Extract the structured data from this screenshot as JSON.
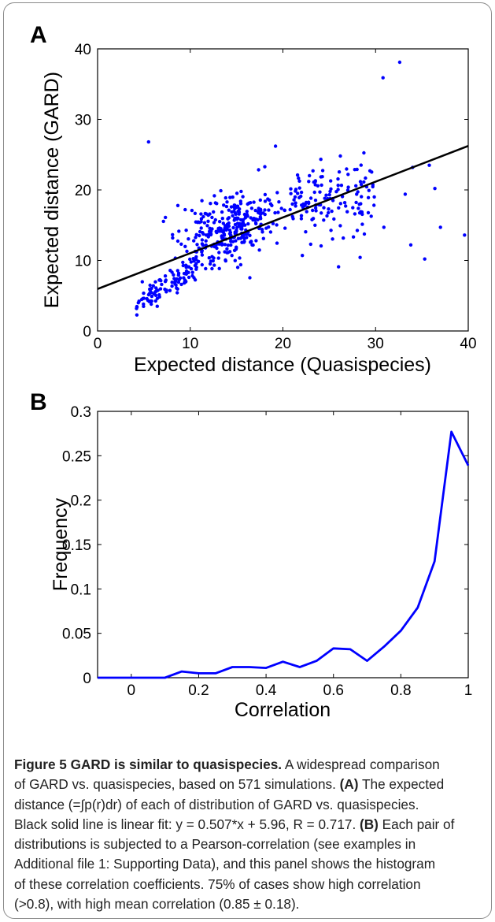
{
  "chart_data": [
    {
      "type": "scatter",
      "panel_label": "A",
      "xlabel": "Expected distance (Quasispecies)",
      "ylabel": "Expected distance (GARD)",
      "xlim": [
        0,
        40
      ],
      "ylim": [
        0,
        40
      ],
      "xticks": [
        "0",
        "10",
        "20",
        "30",
        "40"
      ],
      "yticks": [
        "0",
        "10",
        "20",
        "30",
        "40"
      ],
      "point_color": "#0000ff",
      "fit_line": {
        "slope": 0.507,
        "intercept": 5.96,
        "color": "#000000"
      },
      "point_count": 571,
      "distinct_points": [
        [
          5.5,
          26.8
        ],
        [
          32.6,
          38.1
        ],
        [
          30.8,
          35.9
        ],
        [
          19.2,
          26.2
        ],
        [
          26.2,
          24.8
        ],
        [
          39.6,
          13.6
        ],
        [
          35.3,
          10.2
        ],
        [
          26.0,
          9.1
        ],
        [
          37.0,
          14.7
        ],
        [
          33.8,
          12.2
        ],
        [
          4.2,
          3.2
        ],
        [
          4.4,
          4.0
        ],
        [
          4.9,
          4.6
        ],
        [
          5.6,
          5.3
        ],
        [
          6.3,
          6.1
        ],
        [
          8.1,
          13.2
        ],
        [
          11.2,
          15.9
        ],
        [
          28.0,
          22.9
        ],
        [
          35.8,
          23.5
        ],
        [
          36.4,
          20.2
        ],
        [
          34.0,
          23.2
        ],
        [
          33.2,
          19.4
        ],
        [
          30.9,
          14.7
        ],
        [
          22.1,
          10.7
        ],
        [
          23.0,
          12.3
        ]
      ]
    },
    {
      "type": "line",
      "panel_label": "B",
      "xlabel": "Correlation",
      "ylabel": "Frequency",
      "xlim": [
        -0.1,
        1.0
      ],
      "ylim": [
        0,
        0.3
      ],
      "xticks": [
        "0",
        "0.2",
        "0.4",
        "0.6",
        "0.8",
        "1"
      ],
      "yticks": [
        "0",
        "0.05",
        "0.1",
        "0.15",
        "0.2",
        "0.25",
        "0.3"
      ],
      "line_color": "#0000ff",
      "series": [
        {
          "x": [
            -0.1,
            -0.05,
            0.0,
            0.05,
            0.1,
            0.15,
            0.2,
            0.25,
            0.3,
            0.35,
            0.4,
            0.45,
            0.5,
            0.55,
            0.6,
            0.65,
            0.7,
            0.75,
            0.8,
            0.85,
            0.9,
            0.95,
            1.0
          ],
          "y": [
            0.0,
            0.0,
            0.0,
            0.0,
            0.0,
            0.007,
            0.005,
            0.005,
            0.012,
            0.012,
            0.011,
            0.018,
            0.012,
            0.019,
            0.033,
            0.032,
            0.019,
            0.035,
            0.053,
            0.079,
            0.131,
            0.277,
            0.239
          ]
        }
      ]
    }
  ],
  "caption": {
    "figure_label": "Figure 5 GARD is similar to quasispecies.",
    "lines": [
      " A widespread comparison",
      "of GARD vs. quasispecies, based on 571 simulations. ",
      "(A)",
      " The expected",
      "distance (=∫p(r)dr) of each of distribution of GARD vs. quasispecies.",
      "Black solid line is linear fit: y = 0.507*x + 5.96, R = 0.717. ",
      "(B)",
      " Each pair of",
      "distributions is subjected to a Pearson-correlation (see examples in",
      "Additional file 1: Supporting Data), and this panel shows the histogram",
      "of these correlation coefficients. 75% of cases show high correlation",
      "(>0.8), with high mean correlation (0.85 ± 0.18)."
    ]
  }
}
